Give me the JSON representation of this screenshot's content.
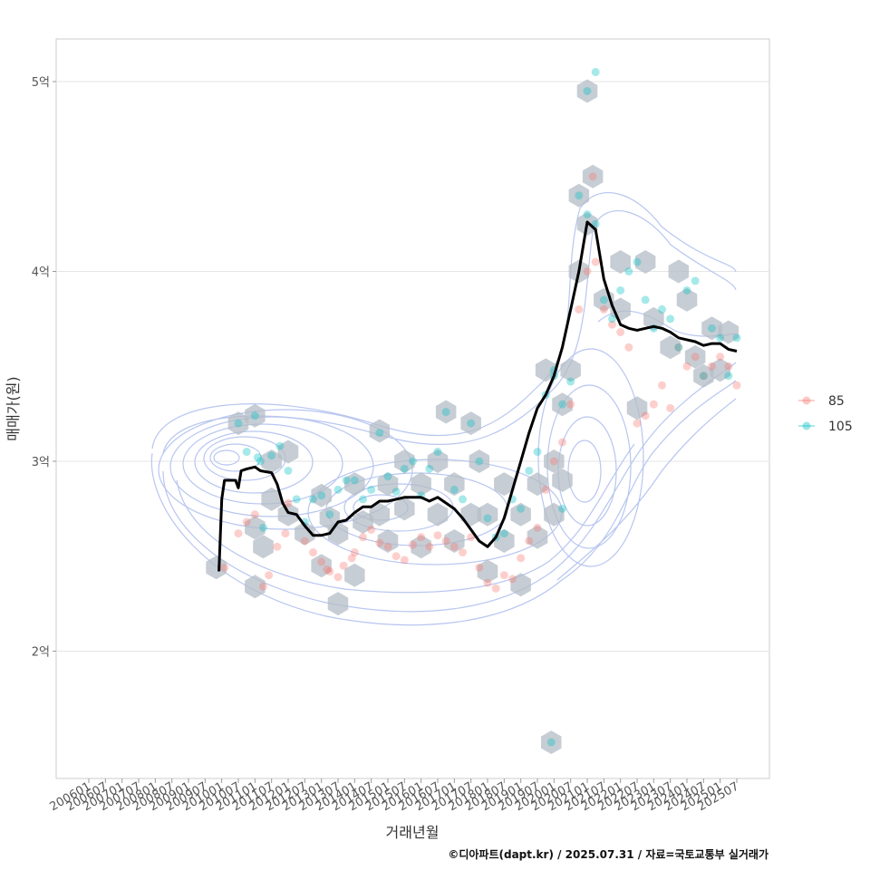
{
  "chart_data": {
    "type": "scatter",
    "xlabel": "거래년월",
    "ylabel": "매매가(원)",
    "x_ticks": [
      "200601",
      "200607",
      "200701",
      "200707",
      "200801",
      "200807",
      "200901",
      "200907",
      "201001",
      "201007",
      "201101",
      "201107",
      "201201",
      "201207",
      "201301",
      "201307",
      "201401",
      "201407",
      "201501",
      "201507",
      "201601",
      "201607",
      "201701",
      "201707",
      "201801",
      "201807",
      "201901",
      "201907",
      "202001",
      "202007",
      "202101",
      "202107",
      "202201",
      "202207",
      "202301",
      "202307",
      "202401",
      "202407",
      "202501",
      "202507"
    ],
    "y_ticks": [
      {
        "value": 2,
        "label": "2억"
      },
      {
        "value": 3,
        "label": "3억"
      },
      {
        "value": 4,
        "label": "4억"
      },
      {
        "value": 5,
        "label": "5억"
      }
    ],
    "ylim": [
      1.35,
      5.22
    ],
    "grid": true,
    "legend_position": "right",
    "legend": [
      {
        "label": "85",
        "color": "#F8766D"
      },
      {
        "label": "105",
        "color": "#00BFC4"
      }
    ],
    "trend_line": {
      "color": "#000000",
      "points": [
        [
          "200912",
          2.42
        ],
        [
          "201001",
          2.8
        ],
        [
          "201002",
          2.9
        ],
        [
          "201004",
          2.9
        ],
        [
          "201006",
          2.9
        ],
        [
          "201007",
          2.86
        ],
        [
          "201008",
          2.95
        ],
        [
          "201010",
          2.96
        ],
        [
          "201101",
          2.97
        ],
        [
          "201103",
          2.95
        ],
        [
          "201107",
          2.94
        ],
        [
          "201109",
          2.88
        ],
        [
          "201111",
          2.78
        ],
        [
          "201201",
          2.73
        ],
        [
          "201204",
          2.72
        ],
        [
          "201207",
          2.66
        ],
        [
          "201210",
          2.61
        ],
        [
          "201301",
          2.61
        ],
        [
          "201304",
          2.62
        ],
        [
          "201307",
          2.68
        ],
        [
          "201310",
          2.69
        ],
        [
          "201401",
          2.73
        ],
        [
          "201404",
          2.76
        ],
        [
          "201407",
          2.76
        ],
        [
          "201410",
          2.79
        ],
        [
          "201501",
          2.79
        ],
        [
          "201504",
          2.8
        ],
        [
          "201507",
          2.81
        ],
        [
          "201510",
          2.81
        ],
        [
          "201601",
          2.81
        ],
        [
          "201604",
          2.79
        ],
        [
          "201607",
          2.81
        ],
        [
          "201610",
          2.78
        ],
        [
          "201701",
          2.75
        ],
        [
          "201704",
          2.7
        ],
        [
          "201707",
          2.64
        ],
        [
          "201710",
          2.58
        ],
        [
          "201801",
          2.55
        ],
        [
          "201804",
          2.6
        ],
        [
          "201807",
          2.7
        ],
        [
          "201810",
          2.85
        ],
        [
          "201901",
          3.0
        ],
        [
          "201904",
          3.15
        ],
        [
          "201907",
          3.28
        ],
        [
          "201910",
          3.35
        ],
        [
          "202001",
          3.45
        ],
        [
          "202004",
          3.6
        ],
        [
          "202007",
          3.8
        ],
        [
          "202010",
          4.0
        ],
        [
          "202101",
          4.26
        ],
        [
          "202104",
          4.22
        ],
        [
          "202107",
          3.96
        ],
        [
          "202110",
          3.82
        ],
        [
          "202201",
          3.72
        ],
        [
          "202204",
          3.7
        ],
        [
          "202207",
          3.69
        ],
        [
          "202210",
          3.7
        ],
        [
          "202301",
          3.71
        ],
        [
          "202304",
          3.7
        ],
        [
          "202307",
          3.68
        ],
        [
          "202310",
          3.65
        ],
        [
          "202401",
          3.64
        ],
        [
          "202404",
          3.63
        ],
        [
          "202407",
          3.61
        ],
        [
          "202410",
          3.62
        ],
        [
          "202501",
          3.62
        ],
        [
          "202504",
          3.59
        ],
        [
          "202507",
          3.58
        ]
      ]
    },
    "series": [
      {
        "name": "85",
        "color": "#F8766D",
        "points": [
          [
            "201002",
            2.44
          ],
          [
            "201007",
            2.62
          ],
          [
            "201010",
            2.68
          ],
          [
            "201101",
            2.72
          ],
          [
            "201104",
            2.34
          ],
          [
            "201106",
            2.4
          ],
          [
            "201109",
            2.55
          ],
          [
            "201112",
            2.62
          ],
          [
            "201201",
            2.78
          ],
          [
            "201207",
            2.58
          ],
          [
            "201210",
            2.52
          ],
          [
            "201301",
            2.47
          ],
          [
            "201303",
            2.43
          ],
          [
            "201304",
            2.42
          ],
          [
            "201307",
            2.39
          ],
          [
            "201309",
            2.45
          ],
          [
            "201312",
            2.49
          ],
          [
            "201401",
            2.52
          ],
          [
            "201404",
            2.6
          ],
          [
            "201407",
            2.64
          ],
          [
            "201410",
            2.57
          ],
          [
            "201501",
            2.55
          ],
          [
            "201504",
            2.5
          ],
          [
            "201507",
            2.48
          ],
          [
            "201510",
            2.56
          ],
          [
            "201601",
            2.6
          ],
          [
            "201604",
            2.55
          ],
          [
            "201607",
            2.61
          ],
          [
            "201610",
            2.58
          ],
          [
            "201701",
            2.55
          ],
          [
            "201704",
            2.52
          ],
          [
            "201707",
            2.6
          ],
          [
            "201710",
            2.44
          ],
          [
            "201801",
            2.36
          ],
          [
            "201804",
            2.33
          ],
          [
            "201807",
            2.4
          ],
          [
            "201810",
            2.38
          ],
          [
            "201901",
            2.49
          ],
          [
            "201904",
            2.58
          ],
          [
            "201907",
            2.65
          ],
          [
            "201910",
            2.85
          ],
          [
            "202001",
            3.0
          ],
          [
            "202004",
            3.1
          ],
          [
            "202007",
            3.3
          ],
          [
            "202010",
            3.8
          ],
          [
            "202101",
            4.0
          ],
          [
            "202104",
            4.05
          ],
          [
            "202107",
            3.8
          ],
          [
            "202110",
            3.72
          ],
          [
            "202201",
            3.68
          ],
          [
            "202204",
            3.6
          ],
          [
            "202207",
            3.2
          ],
          [
            "202210",
            3.24
          ],
          [
            "202301",
            3.3
          ],
          [
            "202304",
            3.4
          ],
          [
            "202307",
            3.28
          ],
          [
            "202310",
            3.6
          ],
          [
            "202401",
            3.5
          ],
          [
            "202404",
            3.55
          ],
          [
            "202407",
            3.45
          ],
          [
            "202410",
            3.5
          ],
          [
            "202501",
            3.55
          ],
          [
            "202504",
            3.5
          ],
          [
            "202507",
            3.4
          ],
          [
            "202103",
            4.5
          ]
        ]
      },
      {
        "name": "105",
        "color": "#00BFC4",
        "points": [
          [
            "201007",
            3.2
          ],
          [
            "201010",
            3.05
          ],
          [
            "201101",
            3.24
          ],
          [
            "201102",
            3.02
          ],
          [
            "201103",
            3.0
          ],
          [
            "201104",
            2.65
          ],
          [
            "201107",
            3.03
          ],
          [
            "201110",
            3.08
          ],
          [
            "201201",
            2.95
          ],
          [
            "201204",
            2.8
          ],
          [
            "201207",
            2.68
          ],
          [
            "201210",
            2.8
          ],
          [
            "201301",
            2.82
          ],
          [
            "201304",
            2.72
          ],
          [
            "201307",
            2.85
          ],
          [
            "201310",
            2.9
          ],
          [
            "201401",
            2.9
          ],
          [
            "201404",
            2.8
          ],
          [
            "201407",
            2.85
          ],
          [
            "201410",
            3.15
          ],
          [
            "201501",
            2.92
          ],
          [
            "201504",
            2.84
          ],
          [
            "201507",
            2.96
          ],
          [
            "201510",
            3.0
          ],
          [
            "201601",
            2.82
          ],
          [
            "201604",
            2.96
          ],
          [
            "201607",
            3.05
          ],
          [
            "201610",
            3.26
          ],
          [
            "201701",
            2.85
          ],
          [
            "201704",
            2.8
          ],
          [
            "201707",
            3.2
          ],
          [
            "201710",
            3.0
          ],
          [
            "201801",
            2.7
          ],
          [
            "201804",
            2.6
          ],
          [
            "201807",
            2.62
          ],
          [
            "201810",
            2.8
          ],
          [
            "201901",
            2.75
          ],
          [
            "201904",
            2.95
          ],
          [
            "201907",
            3.05
          ],
          [
            "201910",
            3.35
          ],
          [
            "202001",
            3.45
          ],
          [
            "202004",
            3.3
          ],
          [
            "202007",
            3.42
          ],
          [
            "202010",
            4.4
          ],
          [
            "202101",
            4.3
          ],
          [
            "202104",
            4.25
          ],
          [
            "202101",
            4.95
          ],
          [
            "202104",
            5.05
          ],
          [
            "202107",
            3.85
          ],
          [
            "202110",
            3.75
          ],
          [
            "202201",
            3.9
          ],
          [
            "202204",
            4.0
          ],
          [
            "202207",
            4.05
          ],
          [
            "202210",
            3.85
          ],
          [
            "202301",
            3.7
          ],
          [
            "202304",
            3.8
          ],
          [
            "202307",
            3.75
          ],
          [
            "202310",
            3.6
          ],
          [
            "202401",
            3.9
          ],
          [
            "202404",
            3.95
          ],
          [
            "202407",
            3.45
          ],
          [
            "202410",
            3.7
          ],
          [
            "202501",
            3.65
          ],
          [
            "202504",
            3.45
          ],
          [
            "202507",
            3.65
          ],
          [
            "201912",
            1.52
          ],
          [
            "202001",
            3.48
          ],
          [
            "202004",
            2.75
          ]
        ]
      }
    ],
    "hexbins": [
      [
        "200911",
        2.44
      ],
      [
        "201007",
        3.2
      ],
      [
        "201101",
        3.24
      ],
      [
        "201101",
        2.65
      ],
      [
        "201101",
        2.34
      ],
      [
        "201104",
        2.55
      ],
      [
        "201107",
        3.0
      ],
      [
        "201107",
        2.8
      ],
      [
        "201201",
        3.05
      ],
      [
        "201201",
        2.72
      ],
      [
        "201207",
        2.62
      ],
      [
        "201301",
        2.82
      ],
      [
        "201301",
        2.45
      ],
      [
        "201304",
        2.7
      ],
      [
        "201307",
        2.62
      ],
      [
        "201307",
        2.25
      ],
      [
        "201401",
        2.88
      ],
      [
        "201401",
        2.4
      ],
      [
        "201404",
        2.68
      ],
      [
        "201410",
        3.16
      ],
      [
        "201410",
        2.72
      ],
      [
        "201501",
        2.88
      ],
      [
        "201501",
        2.58
      ],
      [
        "201507",
        2.75
      ],
      [
        "201507",
        3.0
      ],
      [
        "201601",
        2.88
      ],
      [
        "201601",
        2.55
      ],
      [
        "201607",
        3.0
      ],
      [
        "201607",
        2.72
      ],
      [
        "201610",
        3.26
      ],
      [
        "201701",
        2.88
      ],
      [
        "201701",
        2.58
      ],
      [
        "201707",
        3.2
      ],
      [
        "201707",
        2.72
      ],
      [
        "201710",
        3.0
      ],
      [
        "201801",
        2.72
      ],
      [
        "201801",
        2.42
      ],
      [
        "201807",
        2.58
      ],
      [
        "201807",
        2.88
      ],
      [
        "201901",
        2.35
      ],
      [
        "201901",
        2.72
      ],
      [
        "201907",
        2.6
      ],
      [
        "201907",
        2.88
      ],
      [
        "201910",
        3.48
      ],
      [
        "202001",
        3.0
      ],
      [
        "202001",
        2.72
      ],
      [
        "202004",
        3.3
      ],
      [
        "202007",
        3.48
      ],
      [
        "202010",
        4.4
      ],
      [
        "202010",
        4.0
      ],
      [
        "202101",
        4.25
      ],
      [
        "202101",
        4.95
      ],
      [
        "202103",
        4.5
      ],
      [
        "202107",
        3.85
      ],
      [
        "202201",
        4.05
      ],
      [
        "202201",
        3.8
      ],
      [
        "202207",
        3.28
      ],
      [
        "202210",
        4.05
      ],
      [
        "202301",
        3.75
      ],
      [
        "202307",
        3.6
      ],
      [
        "202310",
        4.0
      ],
      [
        "202401",
        3.85
      ],
      [
        "202404",
        3.55
      ],
      [
        "202407",
        3.45
      ],
      [
        "202410",
        3.7
      ],
      [
        "202501",
        3.48
      ],
      [
        "202504",
        3.68
      ],
      [
        "201912",
        1.52
      ],
      [
        "202004",
        2.9
      ]
    ]
  },
  "caption": "©디아파트(dapt.kr) / 2025.07.31 / 자료=국토교통부 실거래가"
}
